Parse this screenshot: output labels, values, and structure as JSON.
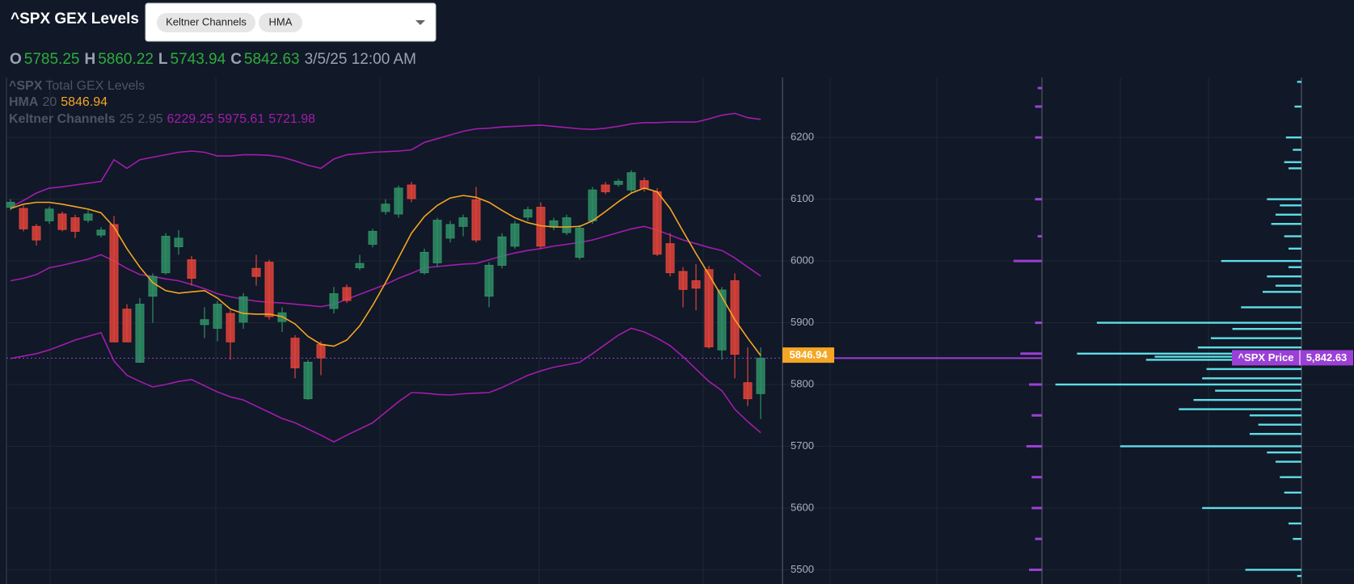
{
  "header": {
    "title": "^SPX GEX Levels",
    "indicators": [
      "Keltner Channels",
      "HMA"
    ],
    "ohlc_letters": [
      "O",
      "H",
      "L",
      "C"
    ],
    "date": "3/5/25 12:00 AM"
  },
  "chart_data": {
    "type": "candlestick",
    "legend": {
      "source_symbol": "^SPX",
      "source_name": "Total GEX Levels",
      "hma_name": "HMA",
      "hma_period": 20,
      "keltner_name": "Keltner Channels",
      "keltner_period": 25,
      "keltner_mult": 2.95
    },
    "up_color": "#2f8f66",
    "down_color": "#e0433b",
    "candles": {
      "open": [
        6087,
        6085,
        6056,
        6065,
        6076,
        6070,
        6066,
        6042,
        6059,
        5922,
        5836,
        5943,
        5981,
        6023,
        6002,
        5897,
        5891,
        5915,
        5901,
        5988,
        5998,
        5902,
        5875,
        5777,
        5865,
        5923,
        5957,
        5989,
        6027,
        6080,
        6076,
        6123,
        5981,
        5997,
        6037,
        6056,
        6099,
        5943,
        5993,
        6024,
        6071,
        6087,
        6055,
        6046,
        6006,
        6065,
        6123,
        6124,
        6115,
        6130,
        6112,
        6028,
        5983,
        5968,
        5986,
        5856,
        5968,
        5803,
        5785.25
      ],
      "high": [
        6100,
        6090,
        6060,
        6088,
        6080,
        6075,
        6082,
        6055,
        6073,
        5930,
        5940,
        5980,
        6045,
        6050,
        6008,
        5925,
        5935,
        5920,
        5948,
        6010,
        6002,
        5925,
        5880,
        5840,
        5870,
        5958,
        5962,
        6010,
        6052,
        6100,
        6122,
        6128,
        6020,
        6070,
        6065,
        6075,
        6120,
        5998,
        6045,
        6065,
        6088,
        6095,
        6070,
        6075,
        6058,
        6120,
        6128,
        6133,
        6147,
        6135,
        6118,
        6045,
        5990,
        5995,
        5992,
        5958,
        5980,
        5860,
        5860.22
      ],
      "low": [
        6082,
        6048,
        6025,
        6060,
        6048,
        6037,
        6062,
        6038,
        5869,
        5869,
        5835,
        5900,
        5978,
        6010,
        5960,
        5875,
        5870,
        5840,
        5890,
        5960,
        5905,
        5885,
        5810,
        5775,
        5815,
        5915,
        5932,
        5985,
        6022,
        6075,
        6070,
        6095,
        5978,
        5990,
        6030,
        6040,
        6030,
        5925,
        5988,
        6020,
        6065,
        6020,
        6050,
        6042,
        6002,
        6060,
        6108,
        6120,
        6110,
        6112,
        6008,
        5975,
        5925,
        5920,
        5858,
        5840,
        5810,
        5765,
        5743.94
      ],
      "close": [
        6095,
        6052,
        6034,
        6084,
        6051,
        6048,
        6076,
        6050,
        5869,
        5869,
        5930,
        5975,
        6040,
        6037,
        5972,
        5905,
        5930,
        5869,
        5942,
        5975,
        5910,
        5916,
        5827,
        5836,
        5843,
        5947,
        5936,
        5996,
        6048,
        6092,
        6118,
        6101,
        6014,
        6066,
        6059,
        6070,
        6034,
        5993,
        6039,
        6060,
        6083,
        6024,
        6065,
        6070,
        6053,
        6115,
        6112,
        6129,
        6143,
        6118,
        6011,
        5981,
        5954,
        5956,
        5861,
        5953,
        5849,
        5777,
        5842.63
      ]
    },
    "hma": {
      "color": "#f5a623",
      "values": [
        6085,
        6092,
        6095,
        6095,
        6092,
        6088,
        6084,
        6078,
        6055,
        6020,
        5990,
        5965,
        5952,
        5948,
        5950,
        5952,
        5940,
        5922,
        5915,
        5914,
        5914,
        5910,
        5898,
        5878,
        5865,
        5862,
        5872,
        5895,
        5928,
        5965,
        6005,
        6045,
        6072,
        6090,
        6102,
        6106,
        6103,
        6095,
        6082,
        6070,
        6062,
        6057,
        6055,
        6055,
        6056,
        6065,
        6080,
        6096,
        6110,
        6118,
        6112,
        6085,
        6048,
        6012,
        5978,
        5942,
        5905,
        5875,
        5846.94
      ]
    },
    "keltner": {
      "color": "#a21caf",
      "upper": [
        6087,
        6098,
        6110,
        6118,
        6120,
        6123,
        6126,
        6129,
        6164,
        6150,
        6164,
        6168,
        6172,
        6176,
        6178,
        6176,
        6170,
        6170,
        6172,
        6172,
        6171,
        6168,
        6162,
        6155,
        6150,
        6165,
        6172,
        6174,
        6176,
        6177,
        6178,
        6180,
        6192,
        6198,
        6204,
        6210,
        6214,
        6215,
        6217,
        6218,
        6219,
        6220,
        6218,
        6216,
        6214,
        6213,
        6215,
        6218,
        6222,
        6224,
        6224,
        6225,
        6225,
        6225,
        6230,
        6236,
        6239,
        6232,
        6229.25
      ],
      "middle": [
        5968,
        5972,
        5978,
        5989,
        5993,
        5998,
        6003,
        6010,
        6000,
        5988,
        5978,
        5975,
        5971,
        5968,
        5962,
        5955,
        5947,
        5942,
        5938,
        5935,
        5933,
        5932,
        5930,
        5928,
        5926,
        5930,
        5938,
        5946,
        5954,
        5962,
        5972,
        5980,
        5989,
        5991,
        5993,
        5995,
        5996,
        6002,
        6008,
        6013,
        6017,
        6020,
        6024,
        6027,
        6030,
        6034,
        6040,
        6046,
        6052,
        6056,
        6050,
        6042,
        6034,
        6028,
        6022,
        6017,
        6005,
        5990,
        5975.61
      ],
      "lower": [
        5842,
        5846,
        5850,
        5856,
        5864,
        5872,
        5878,
        5884,
        5838,
        5815,
        5805,
        5796,
        5800,
        5805,
        5808,
        5798,
        5788,
        5780,
        5775,
        5765,
        5755,
        5745,
        5738,
        5728,
        5718,
        5707,
        5718,
        5728,
        5738,
        5755,
        5772,
        5787,
        5786,
        5784,
        5783,
        5785,
        5786,
        5787,
        5795,
        5805,
        5815,
        5822,
        5828,
        5832,
        5836,
        5850,
        5865,
        5880,
        5891,
        5885,
        5875,
        5863,
        5845,
        5825,
        5805,
        5790,
        5760,
        5740,
        5721.98
      ]
    },
    "ylim": [
      5477,
      6297
    ],
    "yticks": [
      5500,
      5600,
      5700,
      5800,
      5900,
      6000,
      6100,
      6200
    ],
    "grid": true,
    "price_tag": {
      "name": "^SPX Price",
      "color": "#9b40d6",
      "value": {
        "value": 5842.63,
        "label": "5,842.63"
      }
    },
    "gex": {
      "call_color": "#5fdde6",
      "put_color": "#9b40d6",
      "levels": [
        6290,
        6250,
        6200,
        6180,
        6160,
        6150,
        6100,
        6090,
        6075,
        6060,
        6040,
        6020,
        6000,
        5990,
        5975,
        5960,
        5950,
        5925,
        5900,
        5890,
        5875,
        5860,
        5850,
        5845,
        5840,
        5825,
        5810,
        5800,
        5790,
        5775,
        5760,
        5750,
        5735,
        5720,
        5700,
        5690,
        5675,
        5650,
        5625,
        5600,
        5575,
        5550,
        5500,
        5490
      ],
      "values": [
        5,
        8,
        18,
        10,
        20,
        15,
        40,
        25,
        30,
        35,
        20,
        15,
        93,
        15,
        40,
        30,
        45,
        70,
        237,
        80,
        105,
        120,
        260,
        170,
        180,
        110,
        115,
        285,
        100,
        125,
        142,
        60,
        50,
        60,
        210,
        40,
        30,
        25,
        20,
        115,
        15,
        10,
        65,
        5
      ],
      "put_levels": [
        6280,
        6250,
        6200,
        6100,
        6040,
        6000,
        5900,
        5850,
        5800,
        5750,
        5700,
        5650,
        5600,
        5550,
        5500
      ],
      "put_values": [
        5,
        8,
        8,
        8,
        5,
        33,
        8,
        25,
        15,
        12,
        18,
        12,
        12,
        8,
        15
      ]
    }
  }
}
